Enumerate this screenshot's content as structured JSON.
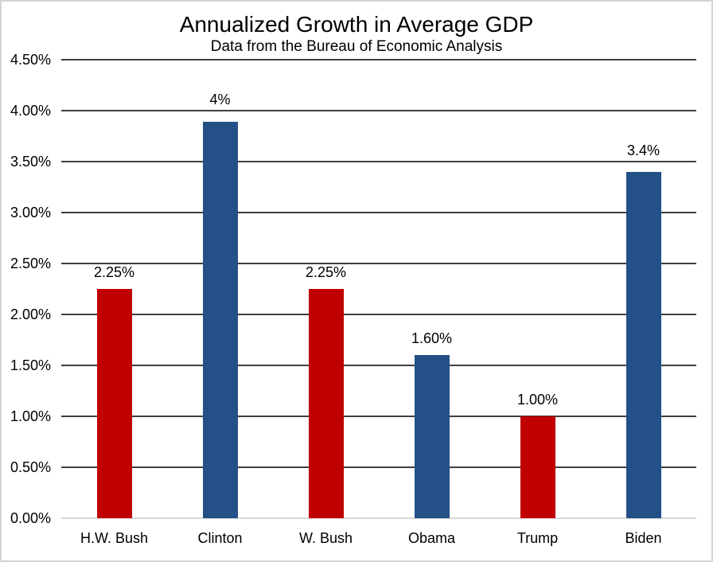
{
  "page": {
    "background": "#FFFFFF",
    "frame_border_color": "#D4D4D4"
  },
  "colors": {
    "bar_republican": "#C00000",
    "bar_democrat": "#235087",
    "gridline": "#3F3F3F",
    "axis_baseline": "#D9D9D9",
    "text": "#000000"
  },
  "chart_data": {
    "type": "bar",
    "title": "Annualized Growth in Average GDP",
    "subtitle": "Data from the Bureau of Economic Analysis",
    "categories": [
      "H.W. Bush",
      "Clinton",
      "W. Bush",
      "Obama",
      "Trump",
      "Biden"
    ],
    "values": [
      2.25,
      3.89,
      2.25,
      1.6,
      1.0,
      3.4
    ],
    "labels": [
      "2.25%",
      "4%",
      "2.25%",
      "1.60%",
      "1.00%",
      "3.4%"
    ],
    "bar_colors": [
      "#C00000",
      "#235087",
      "#C00000",
      "#235087",
      "#C00000",
      "#235087"
    ],
    "xlabel": "",
    "ylabel": "",
    "ylim": [
      0,
      4.5
    ],
    "ytick_step": 0.5,
    "ytick_labels": [
      "0.00%",
      "0.50%",
      "1.00%",
      "1.50%",
      "2.00%",
      "2.50%",
      "3.00%",
      "3.50%",
      "4.00%",
      "4.50%"
    ],
    "grid": true,
    "legend": false
  }
}
